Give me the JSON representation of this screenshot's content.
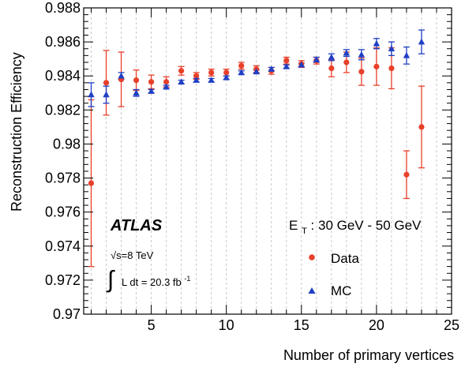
{
  "chart_data": {
    "type": "scatter",
    "xlabel": "Number of primary vertices",
    "ylabel": "Reconstruction Efficiency",
    "xlim": [
      0.5,
      25
    ],
    "ylim": [
      0.97,
      0.988
    ],
    "xticks": [
      5,
      10,
      15,
      20,
      25
    ],
    "yticks": [
      0.97,
      0.972,
      0.974,
      0.976,
      0.978,
      0.98,
      0.982,
      0.984,
      0.986,
      0.988
    ],
    "ytick_labels": [
      "0.97",
      "0.972",
      "0.974",
      "0.976",
      "0.978",
      "0.98",
      "0.982",
      "0.984",
      "0.986",
      "0.988"
    ],
    "grid": "vertical dashed at integers",
    "legend_position": "right",
    "series": [
      {
        "name": "Data",
        "marker": "circle",
        "color": "#e8402a",
        "x": [
          1,
          2,
          3,
          4,
          5,
          6,
          7,
          8,
          9,
          10,
          11,
          12,
          13,
          14,
          15,
          16,
          17,
          18,
          19,
          20,
          21,
          22,
          23
        ],
        "y": [
          0.9777,
          0.9836,
          0.9838,
          0.98375,
          0.98365,
          0.98365,
          0.9843,
          0.984,
          0.9842,
          0.9842,
          0.9846,
          0.9844,
          0.9843,
          0.9849,
          0.9847,
          0.9849,
          0.98445,
          0.9848,
          0.98425,
          0.98455,
          0.98445,
          0.9782,
          0.981
        ],
        "err": [
          0.0049,
          0.0019,
          0.0016,
          0.0006,
          0.0004,
          0.0003,
          0.00025,
          0.0002,
          0.0002,
          0.0002,
          0.0002,
          0.0002,
          0.0002,
          0.0002,
          0.0002,
          0.0002,
          0.0005,
          0.0006,
          0.0008,
          0.0011,
          0.0012,
          0.0014,
          0.0024
        ]
      },
      {
        "name": "MC",
        "marker": "triangle",
        "color": "#1f3fc4",
        "x": [
          1,
          2,
          3,
          4,
          5,
          6,
          7,
          8,
          9,
          10,
          11,
          12,
          13,
          14,
          15,
          16,
          17,
          18,
          19,
          20,
          21,
          22,
          23
        ],
        "y": [
          0.9829,
          0.9829,
          0.984,
          0.983,
          0.9831,
          0.98335,
          0.98365,
          0.98375,
          0.98375,
          0.9839,
          0.9842,
          0.98425,
          0.9844,
          0.98455,
          0.98465,
          0.98495,
          0.9851,
          0.98535,
          0.98525,
          0.9859,
          0.9856,
          0.9852,
          0.986
        ],
        "err": [
          0.0007,
          0.0005,
          0.0002,
          0.0002,
          0.0001,
          0.0001,
          0.0001,
          0.0001,
          0.0001,
          0.0001,
          0.0001,
          0.0001,
          0.0001,
          0.0001,
          0.0001,
          0.00015,
          0.0002,
          0.0002,
          0.0003,
          0.0003,
          0.0004,
          0.0005,
          0.0007
        ]
      }
    ],
    "annotations": {
      "experiment": "ATLAS",
      "energy": "√s=8 TeV",
      "lumi_integral": "∫",
      "lumi_text": "L dt = 20.3 fb",
      "lumi_exp": "-1",
      "et_label": "E",
      "et_sub": "T",
      "et_range": ": 30 GeV - 50 GeV"
    }
  }
}
